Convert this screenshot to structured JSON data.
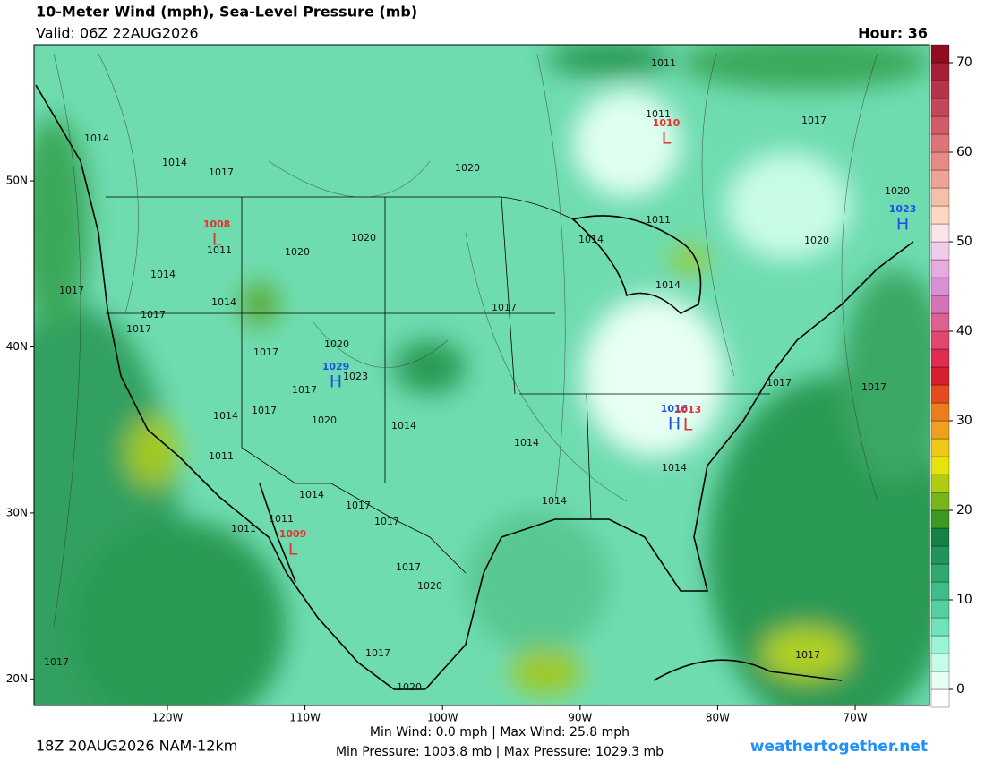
{
  "header": {
    "title": "10-Meter Wind (mph), Sea-Level Pressure (mb)",
    "valid": "Valid: 06Z 22AUG2026",
    "hour": "Hour: 36"
  },
  "map": {
    "xlim": [
      -129.7,
      -64.6
    ],
    "ylim": [
      18.4,
      58.2
    ],
    "xticks": [
      {
        "value": -120,
        "label": "120W"
      },
      {
        "value": -110,
        "label": "110W"
      },
      {
        "value": -100,
        "label": "100W"
      },
      {
        "value": -90,
        "label": "90W"
      },
      {
        "value": -80,
        "label": "80W"
      },
      {
        "value": -70,
        "label": "70W"
      }
    ],
    "yticks": [
      {
        "value": 50,
        "label": "50N"
      },
      {
        "value": 40,
        "label": "40N"
      },
      {
        "value": 30,
        "label": "30N"
      },
      {
        "value": 20,
        "label": "20N"
      }
    ],
    "isobar_labels": [
      "1014",
      "1014",
      "1017",
      "1011",
      "1020",
      "1020",
      "1014",
      "1017",
      "1014",
      "1017",
      "1017",
      "1017",
      "1020",
      "1023",
      "1017",
      "1014",
      "1017",
      "1020",
      "1014",
      "1011",
      "1014",
      "1017",
      "1017",
      "1011",
      "1011",
      "1017",
      "1020",
      "1017",
      "1020",
      "1017",
      "1020",
      "1017",
      "1014",
      "1014",
      "1014",
      "1014",
      "1011",
      "1011",
      "1011",
      "1014",
      "1017",
      "1020",
      "1020",
      "1017",
      "1017",
      "1017"
    ],
    "centers": [
      {
        "symbol": "L",
        "pressure": "1010"
      },
      {
        "symbol": "L",
        "pressure": "1008"
      },
      {
        "symbol": "H",
        "pressure": "1029"
      },
      {
        "symbol": "H",
        "pressure": "1016"
      },
      {
        "symbol": "L",
        "pressure": "1013"
      },
      {
        "symbol": "H",
        "pressure": "1023"
      },
      {
        "symbol": "L",
        "pressure": "1009"
      }
    ]
  },
  "colorbar": {
    "range": [
      -2,
      72
    ],
    "ticks": [
      0,
      10,
      20,
      30,
      40,
      50,
      60,
      70
    ],
    "colors": [
      "#ffffff",
      "#e8fff4",
      "#c4fce6",
      "#98f4d2",
      "#70e4b8",
      "#54d0a0",
      "#40bc88",
      "#30a870",
      "#22945a",
      "#168046",
      "#3c9a22",
      "#78b41c",
      "#b0cc10",
      "#e4e40c",
      "#f0c818",
      "#f0a020",
      "#ec7c1c",
      "#e44c20",
      "#d82030",
      "#e02c50",
      "#e04870",
      "#dc6090",
      "#d474b8",
      "#d890d4",
      "#e4ace0",
      "#f0cceb",
      "#fce4e8",
      "#fcd8c0",
      "#f4c0a8",
      "#eca494",
      "#e48c84",
      "#dc7478",
      "#d05c68",
      "#c4485a",
      "#b4344a",
      "#a42038",
      "#900c20"
    ]
  },
  "footer": {
    "run": "18Z 20AUG2026 NAM-12km",
    "wind": "Min Wind:  0.0 mph | Max Wind: 25.8 mph",
    "pressure": "Min Pressure: 1003.8 mb | Max Pressure: 1029.3 mb",
    "site": "weathertogether.net"
  }
}
